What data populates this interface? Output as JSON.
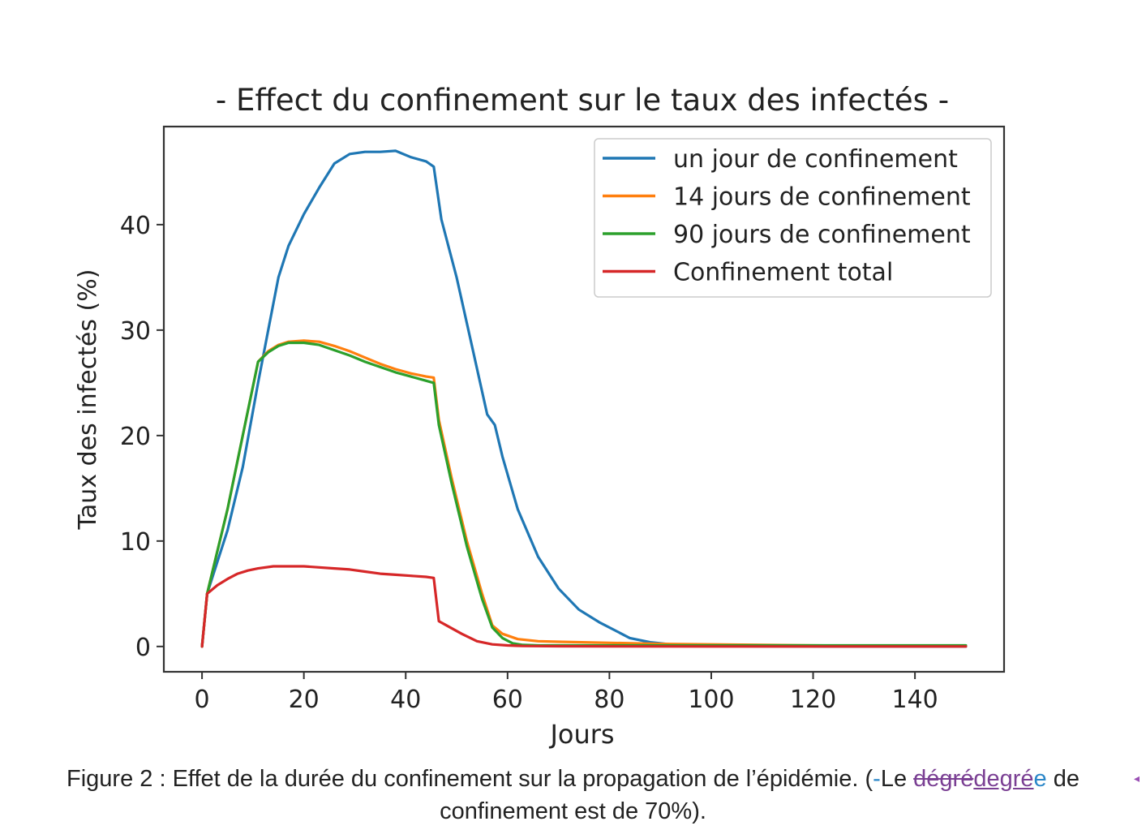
{
  "chart_data": {
    "type": "line",
    "title": "- Effect du confinement sur le taux des infectés -",
    "xlabel": "Jours",
    "ylabel": "Taux des infectés (%)",
    "xlim": [
      -7.5,
      157.5
    ],
    "ylim": [
      -2.4,
      49.3
    ],
    "xticks": [
      0,
      20,
      40,
      60,
      80,
      100,
      120,
      140
    ],
    "yticks": [
      0,
      10,
      20,
      30,
      40
    ],
    "grid": false,
    "legend_position": "top-right",
    "series": [
      {
        "name": "un jour de confinement",
        "color": "#1f77b4",
        "x": [
          0,
          1,
          3,
          5,
          8,
          11,
          13,
          15,
          17,
          20,
          23,
          26,
          29,
          32,
          35,
          38,
          41,
          44,
          45.5,
          47,
          50,
          53,
          56,
          57.5,
          59,
          62,
          66,
          70,
          74,
          78,
          82,
          84,
          88,
          92,
          96,
          100,
          110,
          120,
          130,
          140,
          150
        ],
        "y": [
          0,
          5,
          8,
          11,
          17,
          25,
          30,
          35,
          38,
          41,
          43.5,
          45.8,
          46.7,
          46.9,
          46.9,
          47,
          46.4,
          46,
          45.5,
          40.5,
          35,
          28.5,
          22,
          21,
          18,
          13,
          8.5,
          5.5,
          3.5,
          2.3,
          1.3,
          0.8,
          0.4,
          0.2,
          0.1,
          0.05,
          0.02,
          0.01,
          0,
          0,
          0
        ]
      },
      {
        "name": "14 jours de confinement",
        "color": "#ff7f0e",
        "x": [
          0,
          1,
          3,
          5,
          8,
          11,
          13,
          15,
          17,
          20,
          23,
          26,
          29,
          32,
          35,
          38,
          41,
          44,
          45.5,
          46.5,
          49,
          52,
          55,
          57,
          59,
          62,
          66,
          70,
          80,
          90,
          100,
          110,
          120,
          130,
          140,
          150
        ],
        "y": [
          0,
          5,
          9,
          13,
          20,
          27,
          28,
          28.6,
          28.9,
          29,
          28.9,
          28.5,
          28,
          27.4,
          26.8,
          26.3,
          25.9,
          25.6,
          25.5,
          21.5,
          16,
          10,
          5,
          2,
          1.2,
          0.7,
          0.5,
          0.45,
          0.35,
          0.25,
          0.2,
          0.15,
          0.1,
          0.08,
          0.06,
          0.05
        ]
      },
      {
        "name": "90 jours de confinement",
        "color": "#2ca02c",
        "x": [
          0,
          1,
          3,
          5,
          8,
          11,
          13,
          15,
          17,
          20,
          23,
          26,
          29,
          32,
          35,
          38,
          41,
          44,
          45.5,
          46.5,
          49,
          52,
          55,
          57,
          59,
          61,
          63,
          66,
          70,
          80,
          90,
          100,
          110,
          120,
          130,
          140,
          150
        ],
        "y": [
          0,
          5,
          9,
          13,
          20,
          27,
          27.9,
          28.5,
          28.8,
          28.8,
          28.6,
          28.1,
          27.6,
          27,
          26.5,
          26,
          25.6,
          25.2,
          25,
          21,
          15.5,
          9.5,
          4.5,
          1.8,
          0.8,
          0.3,
          0.15,
          0.1,
          0.1,
          0.1,
          0.1,
          0.1,
          0.1,
          0.1,
          0.1,
          0.1,
          0.1
        ]
      },
      {
        "name": "Confinement total",
        "color": "#d62728",
        "x": [
          0,
          1,
          3,
          5,
          7,
          9,
          11,
          14,
          17,
          20,
          23,
          26,
          29,
          32,
          35,
          38,
          41,
          44,
          45.5,
          46.5,
          48,
          51,
          54,
          57,
          60,
          63,
          70,
          80,
          100,
          150
        ],
        "y": [
          0,
          5,
          5.8,
          6.4,
          6.9,
          7.2,
          7.4,
          7.6,
          7.6,
          7.6,
          7.5,
          7.4,
          7.3,
          7.1,
          6.9,
          6.8,
          6.7,
          6.6,
          6.5,
          2.4,
          2,
          1.2,
          0.5,
          0.2,
          0.1,
          0.05,
          0.02,
          0.01,
          0,
          0
        ]
      }
    ]
  },
  "caption": {
    "line1_main": "Figure 2 : Effet de la durée du confinement sur la propagation de l’épidémie. (",
    "line1_dash": "-",
    "line1_le": "Le ",
    "line1_deleted": "dégré",
    "line1_inserted": "degré",
    "line1_inserted_e": "e",
    "line1_end": " de",
    "line2": "confinement est de 70%)."
  }
}
